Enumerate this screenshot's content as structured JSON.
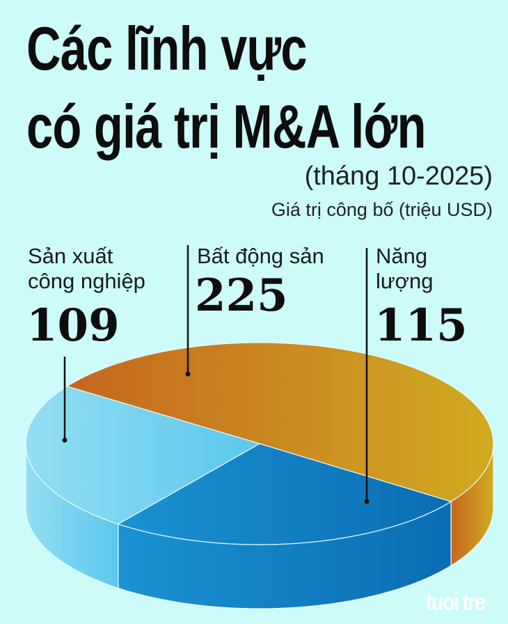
{
  "chart_data": {
    "type": "pie",
    "title": "Các lĩnh vực có giá trị M&A lớn",
    "title_lines": [
      "Các lĩnh vực",
      "có giá trị M&A lớn"
    ],
    "subtitle": "(tháng 10-2025)",
    "unit_label": "Giá trị công bố (triệu USD)",
    "style": "3d",
    "categories": [
      "Năng lượng",
      "Sản xuất công nghiệp",
      "Bất động sản"
    ],
    "values": [
      115,
      109,
      225
    ],
    "labels": [
      {
        "lines": [
          "Sản xuất",
          "công nghiệp"
        ],
        "value": "109"
      },
      {
        "lines": [
          "Bất động sản"
        ],
        "value": "225"
      },
      {
        "lines": [
          "Năng",
          "lượng"
        ],
        "value": "115"
      }
    ],
    "colors": {
      "Năng lượng": [
        "#1b92d2",
        "#0a6db4"
      ],
      "Sản xuất công nghiệp": [
        "#93def2",
        "#5ac7ec"
      ],
      "Bất động sản": [
        "#c5661f",
        "#d0ab20"
      ]
    },
    "background": "#cdfbfa"
  },
  "logo": "tuoitre"
}
